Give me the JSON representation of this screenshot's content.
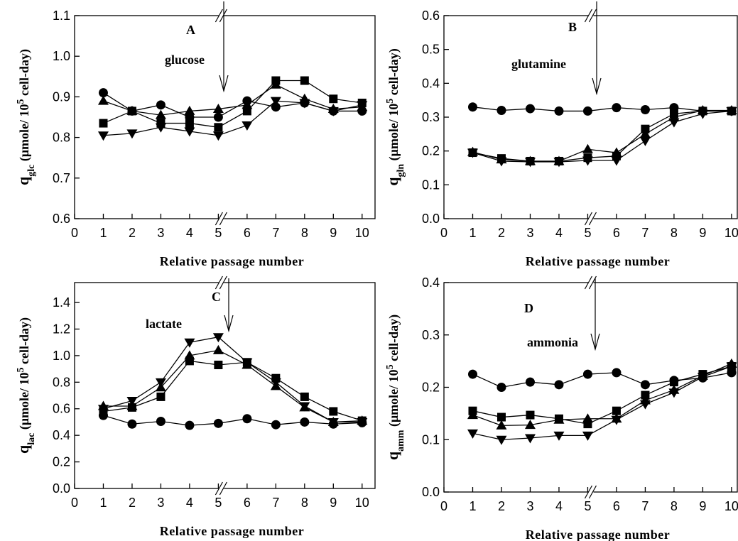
{
  "chart_data": [
    {
      "type": "line",
      "panel": "A",
      "annotation": "glucose",
      "ylabel": [
        "q",
        "glc",
        " (μmole/ 10",
        "5",
        " cell-day)"
      ],
      "xlabel": "Relative passage number",
      "x": [
        1,
        2,
        3,
        4,
        5,
        6,
        7,
        8,
        9,
        10
      ],
      "xlim": [
        0,
        10.45
      ],
      "xticks": [
        0,
        1,
        2,
        3,
        4,
        5,
        6,
        7,
        8,
        9,
        10
      ],
      "ylim": [
        0.6,
        1.1
      ],
      "yticks": [
        0.6,
        0.7,
        0.8,
        0.9,
        {
          "value": 1,
          "label": "1.0"
        },
        1.1
      ],
      "series": [
        {
          "marker": "circle",
          "color": "#000000",
          "values": [
            0.91,
            0.865,
            0.88,
            0.85,
            0.85,
            0.89,
            0.875,
            0.885,
            0.865,
            0.865
          ]
        },
        {
          "marker": "triangle-up",
          "color": "#000000",
          "values": [
            0.89,
            0.865,
            0.855,
            0.865,
            0.87,
            0.88,
            0.93,
            0.895,
            0.87,
            0.875
          ]
        },
        {
          "marker": "square",
          "color": "#000000",
          "values": [
            0.835,
            0.865,
            0.835,
            0.835,
            0.825,
            0.865,
            0.94,
            0.94,
            0.895,
            0.885
          ]
        },
        {
          "marker": "triangle-down",
          "color": "#000000",
          "values": [
            0.805,
            0.81,
            0.825,
            0.815,
            0.805,
            0.83,
            0.89,
            0.885,
            0.865,
            0.88
          ]
        }
      ]
    },
    {
      "type": "line",
      "panel": "B",
      "annotation": "glutamine",
      "ylabel": [
        "q",
        "gln",
        " (μmole/ 10",
        "5",
        " cell-day)"
      ],
      "xlabel": "Relative passage number",
      "x": [
        1,
        2,
        3,
        4,
        5,
        6,
        7,
        8,
        9,
        10
      ],
      "xlim": [
        0,
        10.2
      ],
      "xticks": [
        0,
        1,
        2,
        3,
        4,
        5,
        6,
        7,
        8,
        9,
        10
      ],
      "ylim": [
        0,
        0.6
      ],
      "yticks": [
        {
          "value": 0,
          "label": "0.0"
        },
        0.1,
        0.2,
        0.3,
        0.4,
        0.5,
        0.6
      ],
      "series": [
        {
          "marker": "circle",
          "color": "#000000",
          "values": [
            0.33,
            0.32,
            0.325,
            0.318,
            0.318,
            0.328,
            0.322,
            0.328,
            0.318,
            0.318
          ]
        },
        {
          "marker": "triangle-up",
          "color": "#000000",
          "values": [
            0.197,
            0.175,
            0.17,
            0.17,
            0.205,
            0.195,
            0.25,
            0.3,
            0.32,
            0.32
          ]
        },
        {
          "marker": "square",
          "color": "#000000",
          "values": [
            0.195,
            0.178,
            0.17,
            0.17,
            0.18,
            0.185,
            0.265,
            0.31,
            0.318,
            0.318
          ]
        },
        {
          "marker": "triangle-down",
          "color": "#000000",
          "values": [
            0.195,
            0.17,
            0.168,
            0.168,
            0.172,
            0.172,
            0.23,
            0.285,
            0.31,
            0.318
          ]
        }
      ]
    },
    {
      "type": "line",
      "panel": "C",
      "annotation": "lactate",
      "ylabel": [
        "q",
        "lac",
        " (μmole/ 10",
        "5",
        " cell-day)"
      ],
      "xlabel": "Relative passage number",
      "x": [
        1,
        2,
        3,
        4,
        5,
        6,
        7,
        8,
        9,
        10
      ],
      "xlim": [
        0,
        10.45
      ],
      "xticks": [
        0,
        1,
        2,
        3,
        4,
        5,
        6,
        7,
        8,
        9,
        10
      ],
      "ylim": [
        0,
        1.55
      ],
      "yticks": [
        {
          "value": 0,
          "label": "0.0"
        },
        0.2,
        0.4,
        0.6,
        0.8,
        {
          "value": 1,
          "label": "1.0"
        },
        1.2,
        1.4
      ],
      "series": [
        {
          "marker": "circle",
          "color": "#000000",
          "values": [
            0.55,
            0.485,
            0.505,
            0.475,
            0.49,
            0.525,
            0.48,
            0.5,
            0.485,
            0.495
          ]
        },
        {
          "marker": "triangle-up",
          "color": "#000000",
          "values": [
            0.62,
            0.62,
            0.76,
            1.0,
            1.04,
            0.93,
            0.77,
            0.61,
            0.5,
            0.51
          ]
        },
        {
          "marker": "square",
          "color": "#000000",
          "values": [
            0.58,
            0.61,
            0.69,
            0.96,
            0.93,
            0.95,
            0.83,
            0.69,
            0.58,
            0.51
          ]
        },
        {
          "marker": "triangle-down",
          "color": "#000000",
          "values": [
            0.6,
            0.66,
            0.8,
            1.1,
            1.14,
            0.95,
            0.8,
            0.62,
            0.5,
            0.5
          ]
        }
      ]
    },
    {
      "type": "line",
      "panel": "D",
      "annotation": "ammonia",
      "ylabel": [
        "q",
        "amm",
        " (μmole/ 10",
        "5",
        " cell-day)"
      ],
      "xlabel": "Relative passage number",
      "x": [
        1,
        2,
        3,
        4,
        5,
        6,
        7,
        8,
        9,
        10
      ],
      "xlim": [
        0,
        10.2
      ],
      "xticks": [
        0,
        1,
        2,
        3,
        4,
        5,
        6,
        7,
        8,
        9,
        10
      ],
      "ylim": [
        0,
        0.4
      ],
      "yticks": [
        {
          "value": 0,
          "label": "0.0"
        },
        0.1,
        0.2,
        0.3,
        0.4
      ],
      "series": [
        {
          "marker": "circle",
          "color": "#000000",
          "values": [
            0.225,
            0.2,
            0.21,
            0.205,
            0.225,
            0.228,
            0.205,
            0.213,
            0.218,
            0.228
          ]
        },
        {
          "marker": "square",
          "color": "#000000",
          "values": [
            0.155,
            0.143,
            0.147,
            0.14,
            0.13,
            0.155,
            0.185,
            0.21,
            0.225,
            0.24
          ]
        },
        {
          "marker": "triangle-up",
          "color": "#000000",
          "values": [
            0.147,
            0.127,
            0.128,
            0.138,
            0.14,
            0.14,
            0.175,
            0.195,
            0.222,
            0.245
          ]
        },
        {
          "marker": "triangle-down",
          "color": "#000000",
          "values": [
            0.112,
            0.1,
            0.103,
            0.108,
            0.108,
            0.138,
            0.168,
            0.19,
            0.22,
            0.24
          ]
        }
      ]
    }
  ]
}
